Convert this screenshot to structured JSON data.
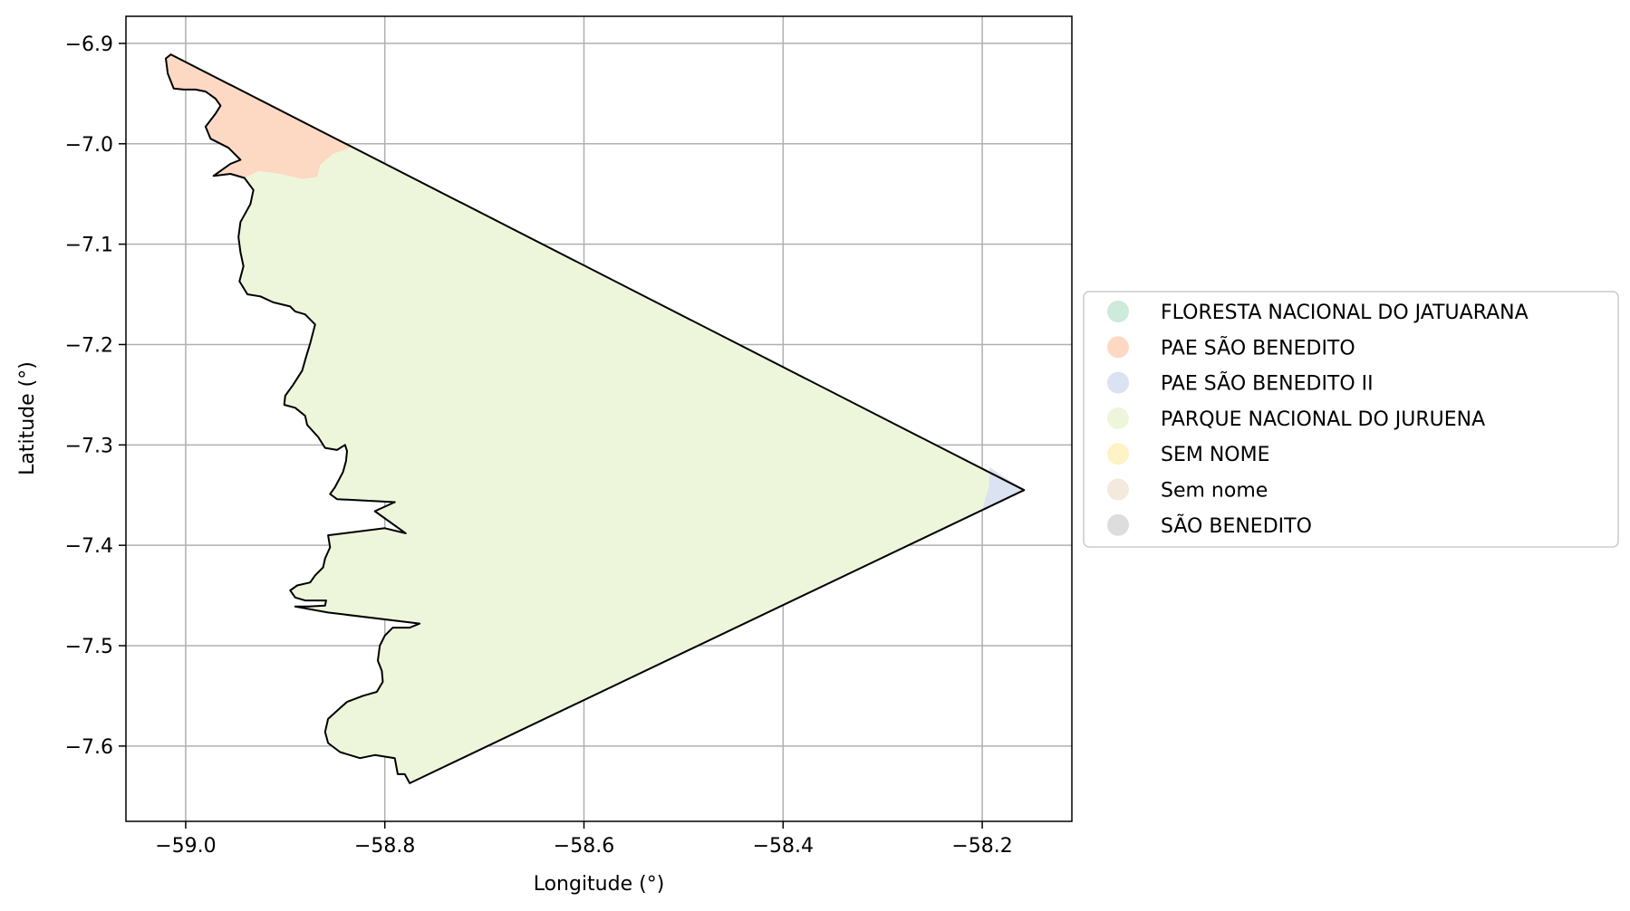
{
  "chart_data": {
    "type": "map",
    "xlabel": "Longitude (°)",
    "ylabel": "Latitude (°)",
    "xlim": [
      -59.06,
      -58.11
    ],
    "ylim": [
      -7.675,
      -6.873
    ],
    "xticks": [
      -59.0,
      -58.8,
      -58.6,
      -58.4,
      -58.2
    ],
    "xtick_labels": [
      "−59.0",
      "−58.8",
      "−58.6",
      "−58.4",
      "−58.2"
    ],
    "yticks": [
      -6.9,
      -7.0,
      -7.1,
      -7.2,
      -7.3,
      -7.4,
      -7.5,
      -7.6
    ],
    "ytick_labels": [
      "−6.9",
      "−7.0",
      "−7.1",
      "−7.2",
      "−7.3",
      "−7.4",
      "−7.5",
      "−7.6"
    ],
    "grid": true,
    "legend_position": "right-outside",
    "legend": [
      {
        "label": "FLORESTA NACIONAL DO JATUARANA",
        "color": "#cdeadb"
      },
      {
        "label": "PAE SÃO BENEDITO",
        "color": "#fdd9c4"
      },
      {
        "label": "PAE SÃO BENEDITO II",
        "color": "#dbe2f1"
      },
      {
        "label": "PARQUE NACIONAL DO JURUENA",
        "color": "#edf6da"
      },
      {
        "label": "SEM NOME",
        "color": "#fdf3c4"
      },
      {
        "label": "Sem nome",
        "color": "#f3e9dd"
      },
      {
        "label": "SÃO BENEDITO",
        "color": "#dddddd"
      }
    ],
    "boundary": [
      [
        -59.015,
        -6.911
      ],
      [
        -58.158,
        -7.345
      ],
      [
        -58.775,
        -7.637
      ],
      [
        -58.78,
        -7.628
      ],
      [
        -58.787,
        -7.628
      ],
      [
        -58.79,
        -7.612
      ],
      [
        -58.81,
        -7.609
      ],
      [
        -58.825,
        -7.612
      ],
      [
        -58.845,
        -7.606
      ],
      [
        -58.857,
        -7.597
      ],
      [
        -58.86,
        -7.586
      ],
      [
        -58.857,
        -7.573
      ],
      [
        -58.846,
        -7.563
      ],
      [
        -58.838,
        -7.556
      ],
      [
        -58.822,
        -7.55
      ],
      [
        -58.808,
        -7.546
      ],
      [
        -58.802,
        -7.536
      ],
      [
        -58.803,
        -7.525
      ],
      [
        -58.807,
        -7.515
      ],
      [
        -58.805,
        -7.5
      ],
      [
        -58.8,
        -7.49
      ],
      [
        -58.792,
        -7.482
      ],
      [
        -58.775,
        -7.482
      ],
      [
        -58.765,
        -7.478
      ],
      [
        -58.857,
        -7.467
      ],
      [
        -58.89,
        -7.461
      ],
      [
        -58.877,
        -7.461
      ],
      [
        -58.86,
        -7.46
      ],
      [
        -58.859,
        -7.455
      ],
      [
        -58.88,
        -7.455
      ],
      [
        -58.89,
        -7.452
      ],
      [
        -58.895,
        -7.445
      ],
      [
        -58.888,
        -7.44
      ],
      [
        -58.875,
        -7.437
      ],
      [
        -58.87,
        -7.43
      ],
      [
        -58.862,
        -7.422
      ],
      [
        -58.86,
        -7.413
      ],
      [
        -58.855,
        -7.402
      ],
      [
        -58.857,
        -7.39
      ],
      [
        -58.8,
        -7.383
      ],
      [
        -58.779,
        -7.388
      ],
      [
        -58.81,
        -7.366
      ],
      [
        -58.79,
        -7.357
      ],
      [
        -58.848,
        -7.354
      ],
      [
        -58.855,
        -7.349
      ],
      [
        -58.85,
        -7.342
      ],
      [
        -58.842,
        -7.327
      ],
      [
        -58.839,
        -7.316
      ],
      [
        -58.838,
        -7.306
      ],
      [
        -58.84,
        -7.3
      ],
      [
        -58.848,
        -7.305
      ],
      [
        -58.86,
        -7.303
      ],
      [
        -58.867,
        -7.292
      ],
      [
        -58.878,
        -7.28
      ],
      [
        -58.88,
        -7.271
      ],
      [
        -58.89,
        -7.263
      ],
      [
        -58.901,
        -7.26
      ],
      [
        -58.9,
        -7.251
      ],
      [
        -58.892,
        -7.24
      ],
      [
        -58.883,
        -7.226
      ],
      [
        -58.879,
        -7.212
      ],
      [
        -58.875,
        -7.199
      ],
      [
        -58.87,
        -7.18
      ],
      [
        -58.88,
        -7.17
      ],
      [
        -58.89,
        -7.167
      ],
      [
        -58.895,
        -7.162
      ],
      [
        -58.912,
        -7.158
      ],
      [
        -58.925,
        -7.152
      ],
      [
        -58.938,
        -7.15
      ],
      [
        -58.946,
        -7.137
      ],
      [
        -58.942,
        -7.122
      ],
      [
        -58.945,
        -7.108
      ],
      [
        -58.947,
        -7.093
      ],
      [
        -58.945,
        -7.078
      ],
      [
        -58.935,
        -7.06
      ],
      [
        -58.932,
        -7.046
      ],
      [
        -58.941,
        -7.034
      ],
      [
        -58.955,
        -7.03
      ],
      [
        -58.972,
        -7.032
      ],
      [
        -58.965,
        -7.027
      ],
      [
        -58.955,
        -7.02
      ],
      [
        -58.945,
        -7.016
      ],
      [
        -58.957,
        -7.004
      ],
      [
        -58.975,
        -6.995
      ],
      [
        -58.98,
        -6.983
      ],
      [
        -58.97,
        -6.97
      ],
      [
        -58.965,
        -6.962
      ],
      [
        -58.97,
        -6.955
      ],
      [
        -58.98,
        -6.948
      ],
      [
        -58.99,
        -6.946
      ],
      [
        -59.002,
        -6.946
      ],
      [
        -59.012,
        -6.945
      ],
      [
        -59.018,
        -6.93
      ],
      [
        -59.02,
        -6.915
      ],
      [
        -59.015,
        -6.911
      ]
    ],
    "regions": [
      {
        "legend_index": 1,
        "points": [
          [
            -59.015,
            -6.911
          ],
          [
            -58.832,
            -7.003
          ],
          [
            -58.852,
            -7.01
          ],
          [
            -58.865,
            -7.021
          ],
          [
            -58.868,
            -7.033
          ],
          [
            -58.883,
            -7.035
          ],
          [
            -58.905,
            -7.03
          ],
          [
            -58.927,
            -7.027
          ],
          [
            -58.941,
            -7.034
          ],
          [
            -58.955,
            -7.03
          ],
          [
            -58.972,
            -7.032
          ],
          [
            -58.945,
            -7.016
          ],
          [
            -58.957,
            -7.004
          ],
          [
            -58.975,
            -6.995
          ],
          [
            -58.98,
            -6.983
          ],
          [
            -58.965,
            -6.962
          ],
          [
            -58.98,
            -6.948
          ],
          [
            -59.012,
            -6.945
          ],
          [
            -59.02,
            -6.915
          ]
        ]
      },
      {
        "legend_index": 2,
        "points": [
          [
            -58.158,
            -7.345
          ],
          [
            -58.193,
            -7.322
          ],
          [
            -58.193,
            -7.34
          ],
          [
            -58.2,
            -7.365
          ]
        ]
      }
    ]
  }
}
